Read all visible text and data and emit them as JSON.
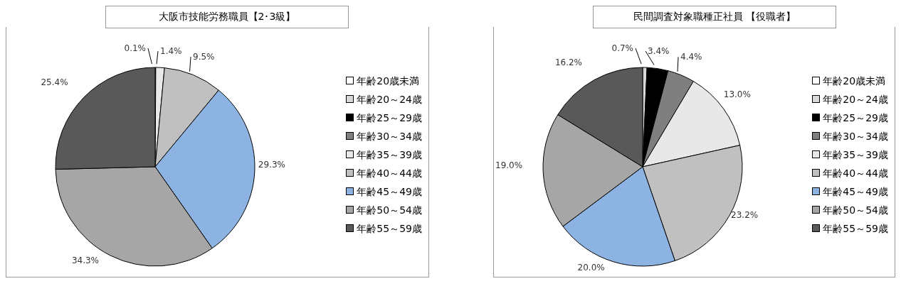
{
  "chart_data": [
    {
      "type": "pie",
      "title": "大阪市技能労務職員【2･3級】",
      "categories": [
        "年齢20歳未満",
        "年齢20～24歳",
        "年齢25～29歳",
        "年齢30～34歳",
        "年齢35～39歳",
        "年齢40～44歳",
        "年齢45～49歳",
        "年齢50～54歳",
        "年齢55～59歳"
      ],
      "values": [
        0,
        0,
        0,
        0.1,
        1.4,
        9.5,
        29.3,
        34.3,
        25.4
      ],
      "value_labels": [
        null,
        null,
        null,
        "0.1%",
        "1.4%",
        "9.5%",
        "29.3%",
        "34.3%",
        "25.4%"
      ],
      "colors": [
        "#ffffff",
        "#d9d9d9",
        "#000000",
        "#7f7f7f",
        "#e8e8e8",
        "#c0c0c0",
        "#8db3e2",
        "#a6a6a6",
        "#595959"
      ],
      "legend": "right"
    },
    {
      "type": "pie",
      "title": "民間調査対象職種正社員 【役職者】",
      "categories": [
        "年齢20歳未満",
        "年齢20～24歳",
        "年齢25～29歳",
        "年齢30～34歳",
        "年齢35～39歳",
        "年齢40～44歳",
        "年齢45～49歳",
        "年齢50～54歳",
        "年齢55～59歳"
      ],
      "values": [
        0,
        0.7,
        3.4,
        4.4,
        13.0,
        23.2,
        20.0,
        19.0,
        16.2
      ],
      "value_labels": [
        null,
        "0.7%",
        "3.4%",
        "4.4%",
        "13.0%",
        "23.2%",
        "20.0%",
        "19.0%",
        "16.2%"
      ],
      "colors": [
        "#ffffff",
        "#d9d9d9",
        "#000000",
        "#7f7f7f",
        "#e8e8e8",
        "#c0c0c0",
        "#8db3e2",
        "#a6a6a6",
        "#595959"
      ],
      "legend": "right"
    }
  ]
}
